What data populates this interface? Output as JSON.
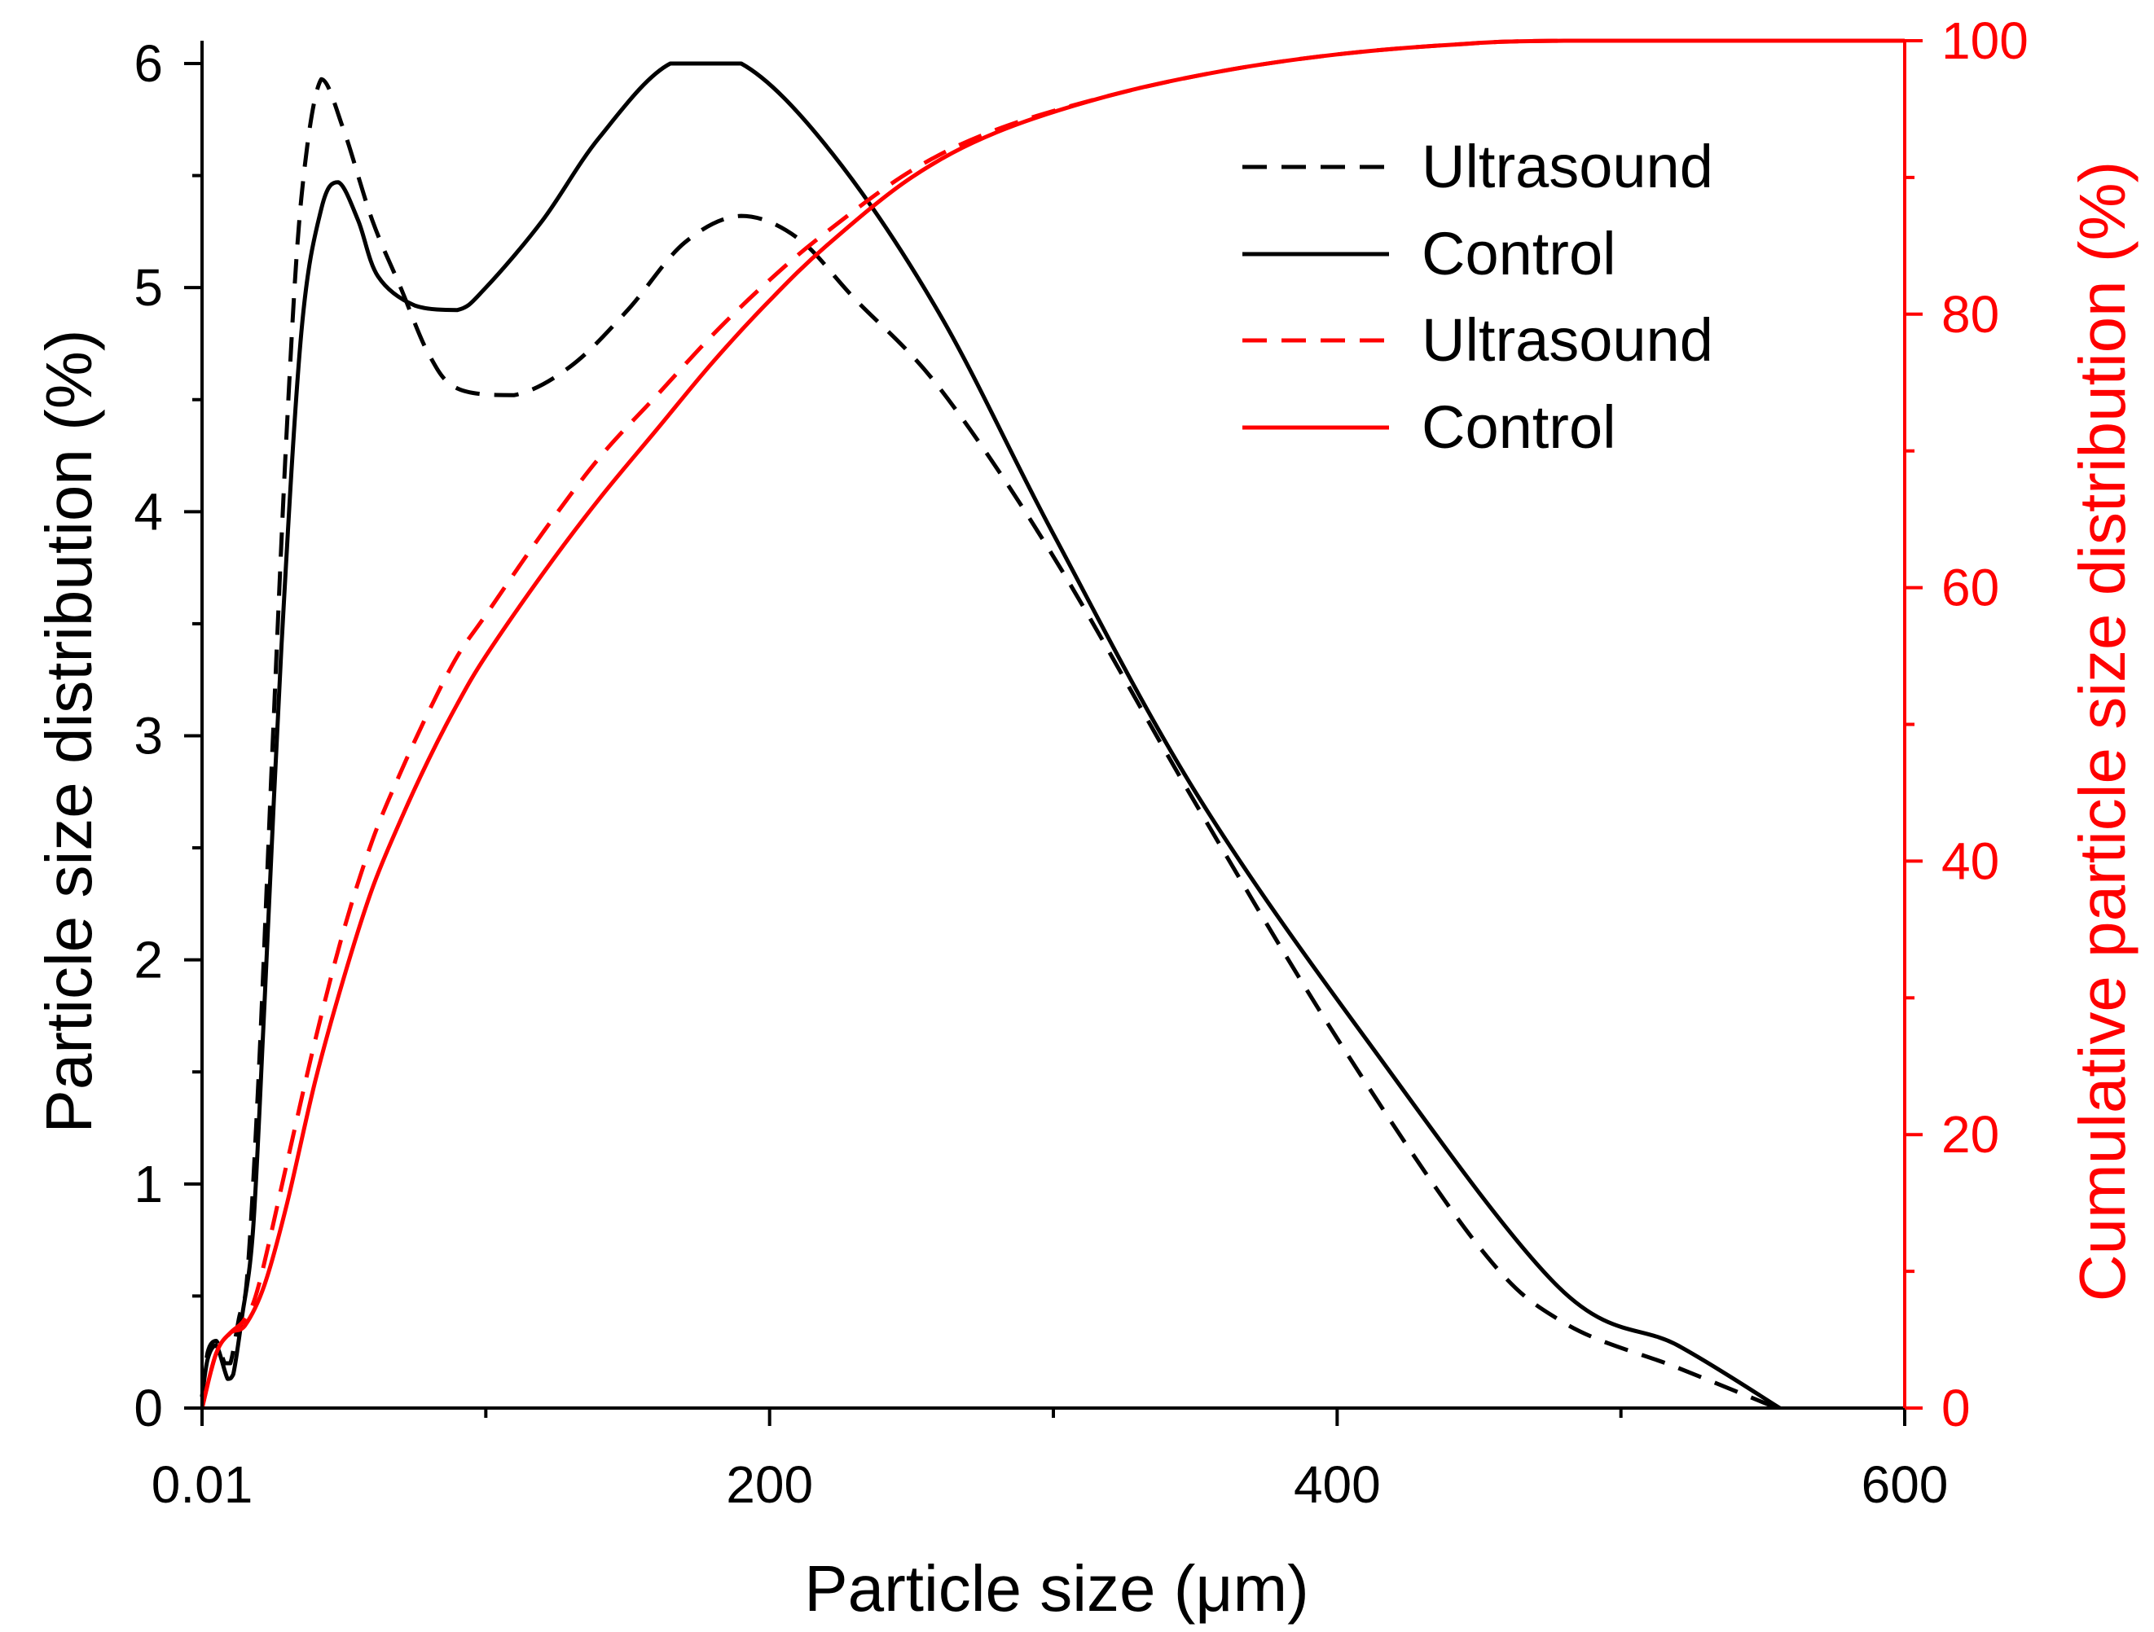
{
  "chart_data": {
    "type": "line",
    "title": "",
    "xlabel": "Particle size (μm)",
    "ylabel_left": "Particle size distribution (%)",
    "ylabel_right": "Cumulative particle size distribution (%)",
    "xlim": [
      0,
      600
    ],
    "ylim_left": [
      0,
      6
    ],
    "ylim_right": [
      0,
      100
    ],
    "x_ticks": [
      0,
      200,
      400,
      600
    ],
    "x_tick_labels": [
      "0.01",
      "200",
      "400",
      "600"
    ],
    "y_left_ticks": [
      0,
      1,
      2,
      3,
      4,
      5,
      6
    ],
    "y_left_tick_labels": [
      "0",
      "1",
      "2",
      "3",
      "4",
      "5",
      "6"
    ],
    "y_right_ticks": [
      0,
      20,
      40,
      60,
      80,
      100
    ],
    "y_right_tick_labels": [
      "0",
      "20",
      "40",
      "60",
      "80",
      "100"
    ],
    "grid": false,
    "legend_position": "top-right",
    "colors": {
      "black": "#000000",
      "red": "#ff0000"
    },
    "series": [
      {
        "name": "Ultrasound",
        "axis": "left",
        "color": "#000000",
        "dash": true,
        "points": [
          [
            0,
            0.05
          ],
          [
            2,
            0.25
          ],
          [
            5,
            0.3
          ],
          [
            8,
            0.2
          ],
          [
            10,
            0.2
          ],
          [
            13,
            0.4
          ],
          [
            16,
            0.6
          ],
          [
            20,
            1.5
          ],
          [
            25,
            3.0
          ],
          [
            30,
            4.4
          ],
          [
            35,
            5.4
          ],
          [
            42,
            5.93
          ],
          [
            50,
            5.7
          ],
          [
            60,
            5.3
          ],
          [
            70,
            5.0
          ],
          [
            80,
            4.7
          ],
          [
            90,
            4.55
          ],
          [
            110,
            4.52
          ],
          [
            130,
            4.65
          ],
          [
            150,
            4.9
          ],
          [
            170,
            5.2
          ],
          [
            190,
            5.32
          ],
          [
            210,
            5.22
          ],
          [
            230,
            4.95
          ],
          [
            260,
            4.55
          ],
          [
            300,
            3.8
          ],
          [
            350,
            2.7
          ],
          [
            400,
            1.65
          ],
          [
            450,
            0.72
          ],
          [
            480,
            0.38
          ],
          [
            520,
            0.18
          ],
          [
            555,
            0.0
          ]
        ]
      },
      {
        "name": "Control",
        "axis": "left",
        "color": "#000000",
        "dash": false,
        "points": [
          [
            0,
            0.05
          ],
          [
            2,
            0.22
          ],
          [
            5,
            0.28
          ],
          [
            9,
            0.13
          ],
          [
            11,
            0.15
          ],
          [
            14,
            0.4
          ],
          [
            18,
            0.8
          ],
          [
            22,
            1.8
          ],
          [
            28,
            3.4
          ],
          [
            35,
            4.8
          ],
          [
            42,
            5.35
          ],
          [
            48,
            5.47
          ],
          [
            55,
            5.3
          ],
          [
            62,
            5.05
          ],
          [
            75,
            4.92
          ],
          [
            90,
            4.9
          ],
          [
            100,
            5.0
          ],
          [
            120,
            5.3
          ],
          [
            140,
            5.67
          ],
          [
            165,
            6.0
          ],
          [
            190,
            6.0
          ],
          [
            222,
            5.6
          ],
          [
            260,
            4.88
          ],
          [
            300,
            3.9
          ],
          [
            350,
            2.75
          ],
          [
            410,
            1.65
          ],
          [
            478,
            0.54
          ],
          [
            520,
            0.28
          ],
          [
            556,
            0.0
          ]
        ]
      },
      {
        "name": "Ultrasound",
        "axis": "right",
        "color": "#ff0000",
        "dash": true,
        "points": [
          [
            0,
            0
          ],
          [
            5,
            4
          ],
          [
            10,
            5.5
          ],
          [
            15,
            6.5
          ],
          [
            20,
            9
          ],
          [
            30,
            18
          ],
          [
            40,
            27
          ],
          [
            50,
            35
          ],
          [
            60,
            41.5
          ],
          [
            70,
            46.5
          ],
          [
            80,
            51
          ],
          [
            90,
            55
          ],
          [
            100,
            58
          ],
          [
            120,
            64
          ],
          [
            140,
            69.5
          ],
          [
            160,
            74
          ],
          [
            180,
            78.5
          ],
          [
            200,
            82.5
          ],
          [
            220,
            86
          ],
          [
            250,
            90.5
          ],
          [
            280,
            93.5
          ],
          [
            320,
            96
          ],
          [
            360,
            97.8
          ],
          [
            400,
            99
          ],
          [
            440,
            99.7
          ],
          [
            480,
            100
          ],
          [
            600,
            100
          ]
        ]
      },
      {
        "name": "Control",
        "axis": "right",
        "color": "#ff0000",
        "dash": false,
        "points": [
          [
            0,
            0
          ],
          [
            5,
            4
          ],
          [
            10,
            5.5
          ],
          [
            15,
            6
          ],
          [
            22,
            9
          ],
          [
            30,
            15
          ],
          [
            40,
            24
          ],
          [
            50,
            31.5
          ],
          [
            60,
            38
          ],
          [
            70,
            43
          ],
          [
            80,
            47.5
          ],
          [
            90,
            51.5
          ],
          [
            100,
            55
          ],
          [
            120,
            61
          ],
          [
            140,
            66.5
          ],
          [
            160,
            71.5
          ],
          [
            180,
            76.5
          ],
          [
            200,
            81
          ],
          [
            220,
            85
          ],
          [
            250,
            90
          ],
          [
            280,
            93.3
          ],
          [
            320,
            96
          ],
          [
            360,
            97.8
          ],
          [
            400,
            99
          ],
          [
            440,
            99.7
          ],
          [
            480,
            100
          ],
          [
            600,
            100
          ]
        ]
      }
    ]
  }
}
